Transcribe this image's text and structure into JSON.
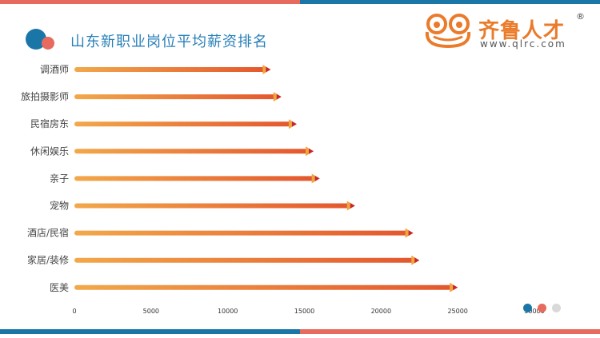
{
  "header": {
    "title": "山东新职业岗位平均薪资排名"
  },
  "logo": {
    "name": "齐鲁人才",
    "url": "www.qlrc.com",
    "reg_mark": "®",
    "icon": "frog-icon"
  },
  "colors": {
    "blue": "#1b76a8",
    "coral": "#e66a5e",
    "bar_start": "#f2a84a",
    "bar_end": "#e4572e",
    "arrow_tip": "#c8272b",
    "gray": "#d9d9d9"
  },
  "chart_data": {
    "type": "bar",
    "orientation": "horizontal",
    "categories": [
      "调酒师",
      "旅拍摄影师",
      "民宿房东",
      "休闲娱乐",
      "亲子",
      "宠物",
      "酒店/民宿",
      "家居/装修",
      "医美"
    ],
    "values": [
      12800,
      13500,
      14500,
      15600,
      16000,
      18300,
      22100,
      22500,
      25000
    ],
    "xlim": [
      0,
      30000
    ],
    "xticks": [
      "0",
      "5000",
      "10000",
      "15000",
      "20000",
      "25000",
      "30000"
    ],
    "title": "山东新职业岗位平均薪资排名",
    "xlabel": "",
    "ylabel": "",
    "grid": false,
    "legend": "none"
  }
}
